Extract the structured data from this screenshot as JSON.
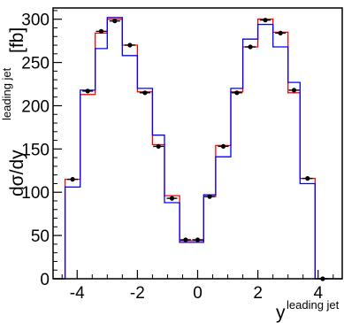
{
  "chart_data": {
    "type": "line",
    "title": "",
    "xlabel": "y",
    "xlabel_superscript": "leading jet",
    "ylabel": "dσ/dy",
    "ylabel_superscript": "leading jet",
    "ylabel_unit": "[fb]",
    "xlim": [
      -4.8,
      4.8
    ],
    "ylim": [
      0,
      313
    ],
    "xticks": [
      -4,
      -2,
      0,
      2,
      4
    ],
    "xtick_labels": [
      "-4",
      "-2",
      "0",
      "2",
      "4"
    ],
    "yticks": [
      0,
      50,
      100,
      150,
      200,
      250,
      300
    ],
    "ytick_labels": [
      "0",
      "50",
      "100",
      "150",
      "200",
      "250",
      "300"
    ],
    "grid": false,
    "legend": "none",
    "bin_edges": [
      -4.8,
      -4.4,
      -3.9,
      -3.4,
      -3.0,
      -2.5,
      -2.0,
      -1.5,
      -1.1,
      -0.6,
      -0.2,
      0.2,
      0.6,
      1.1,
      1.5,
      2.0,
      2.5,
      3.0,
      3.4,
      3.9,
      4.4,
      4.8
    ],
    "series": [
      {
        "kind": "histogram",
        "color": "#ff0000",
        "values": [
          0,
          115,
          213,
          284,
          300,
          270,
          216,
          155,
          96,
          44,
          44,
          95,
          154,
          216,
          268,
          300,
          285,
          215,
          116,
          0,
          0
        ]
      },
      {
        "kind": "histogram",
        "color": "#0000ff",
        "values": [
          0,
          106,
          218,
          266,
          302,
          258,
          220,
          166,
          88,
          42,
          42,
          97,
          141,
          220,
          277,
          294,
          268,
          227,
          110,
          0,
          0
        ]
      },
      {
        "kind": "points",
        "color": "#000000",
        "x": [
          -4.15,
          -3.65,
          -3.2,
          -2.75,
          -2.25,
          -1.75,
          -1.3,
          -0.85,
          -0.4,
          0.0,
          0.4,
          0.85,
          1.3,
          1.75,
          2.25,
          2.75,
          3.2,
          3.65,
          4.15
        ],
        "y": [
          115,
          217,
          286,
          298,
          270,
          215,
          153,
          93,
          45,
          45,
          95,
          153,
          215,
          268,
          299,
          284,
          218,
          116,
          0
        ]
      }
    ]
  }
}
